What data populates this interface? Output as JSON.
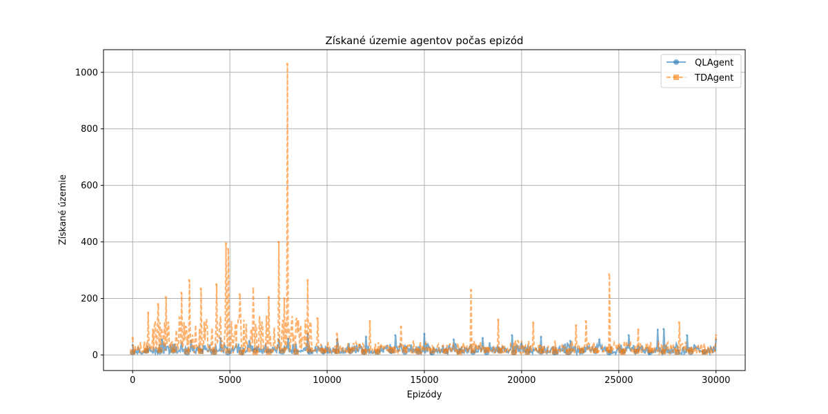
{
  "chart_data": {
    "type": "line",
    "title": "Získané územie agentov počas epizód",
    "xlabel": "Epizódy",
    "ylabel": "Získané územie",
    "xlim": [
      -1500,
      31500
    ],
    "ylim": [
      -55,
      1080
    ],
    "xticks": [
      0,
      5000,
      10000,
      15000,
      20000,
      25000,
      30000
    ],
    "yticks": [
      0,
      200,
      400,
      600,
      800,
      1000
    ],
    "grid": true,
    "legend": {
      "placement": "top-right"
    },
    "n_episodes": 30000,
    "series": [
      {
        "name": "QLAgent",
        "color": "#1f77b4",
        "style": "solid",
        "marker": "circle",
        "baseline": 12,
        "typical_max": 45,
        "x": [
          0,
          1500,
          3000,
          4500,
          6000,
          7500,
          8000,
          9000,
          10500,
          12000,
          13500,
          15000,
          16500,
          18000,
          19500,
          21000,
          22500,
          24000,
          25500,
          27000,
          27300,
          28500,
          30000
        ],
        "values": [
          35,
          55,
          50,
          60,
          50,
          55,
          58,
          75,
          55,
          65,
          70,
          75,
          55,
          60,
          70,
          65,
          50,
          55,
          70,
          90,
          92,
          70,
          55
        ]
      },
      {
        "name": "TDAgent",
        "color": "#ff7f0e",
        "style": "dashed",
        "marker": "square",
        "baseline": 15,
        "typical_max": 55,
        "x": [
          0,
          800,
          1300,
          1700,
          2500,
          2900,
          3500,
          4300,
          4800,
          4900,
          5500,
          6200,
          7000,
          7500,
          7800,
          7950,
          8500,
          9000,
          9500,
          10500,
          12200,
          13800,
          17400,
          18800,
          20600,
          22800,
          23300,
          24500,
          26000,
          28100,
          30000
        ],
        "values": [
          60,
          150,
          180,
          205,
          220,
          265,
          235,
          250,
          395,
          375,
          215,
          235,
          205,
          400,
          200,
          1030,
          120,
          265,
          130,
          75,
          120,
          100,
          230,
          125,
          115,
          105,
          120,
          285,
          90,
          115,
          70
        ]
      }
    ]
  }
}
